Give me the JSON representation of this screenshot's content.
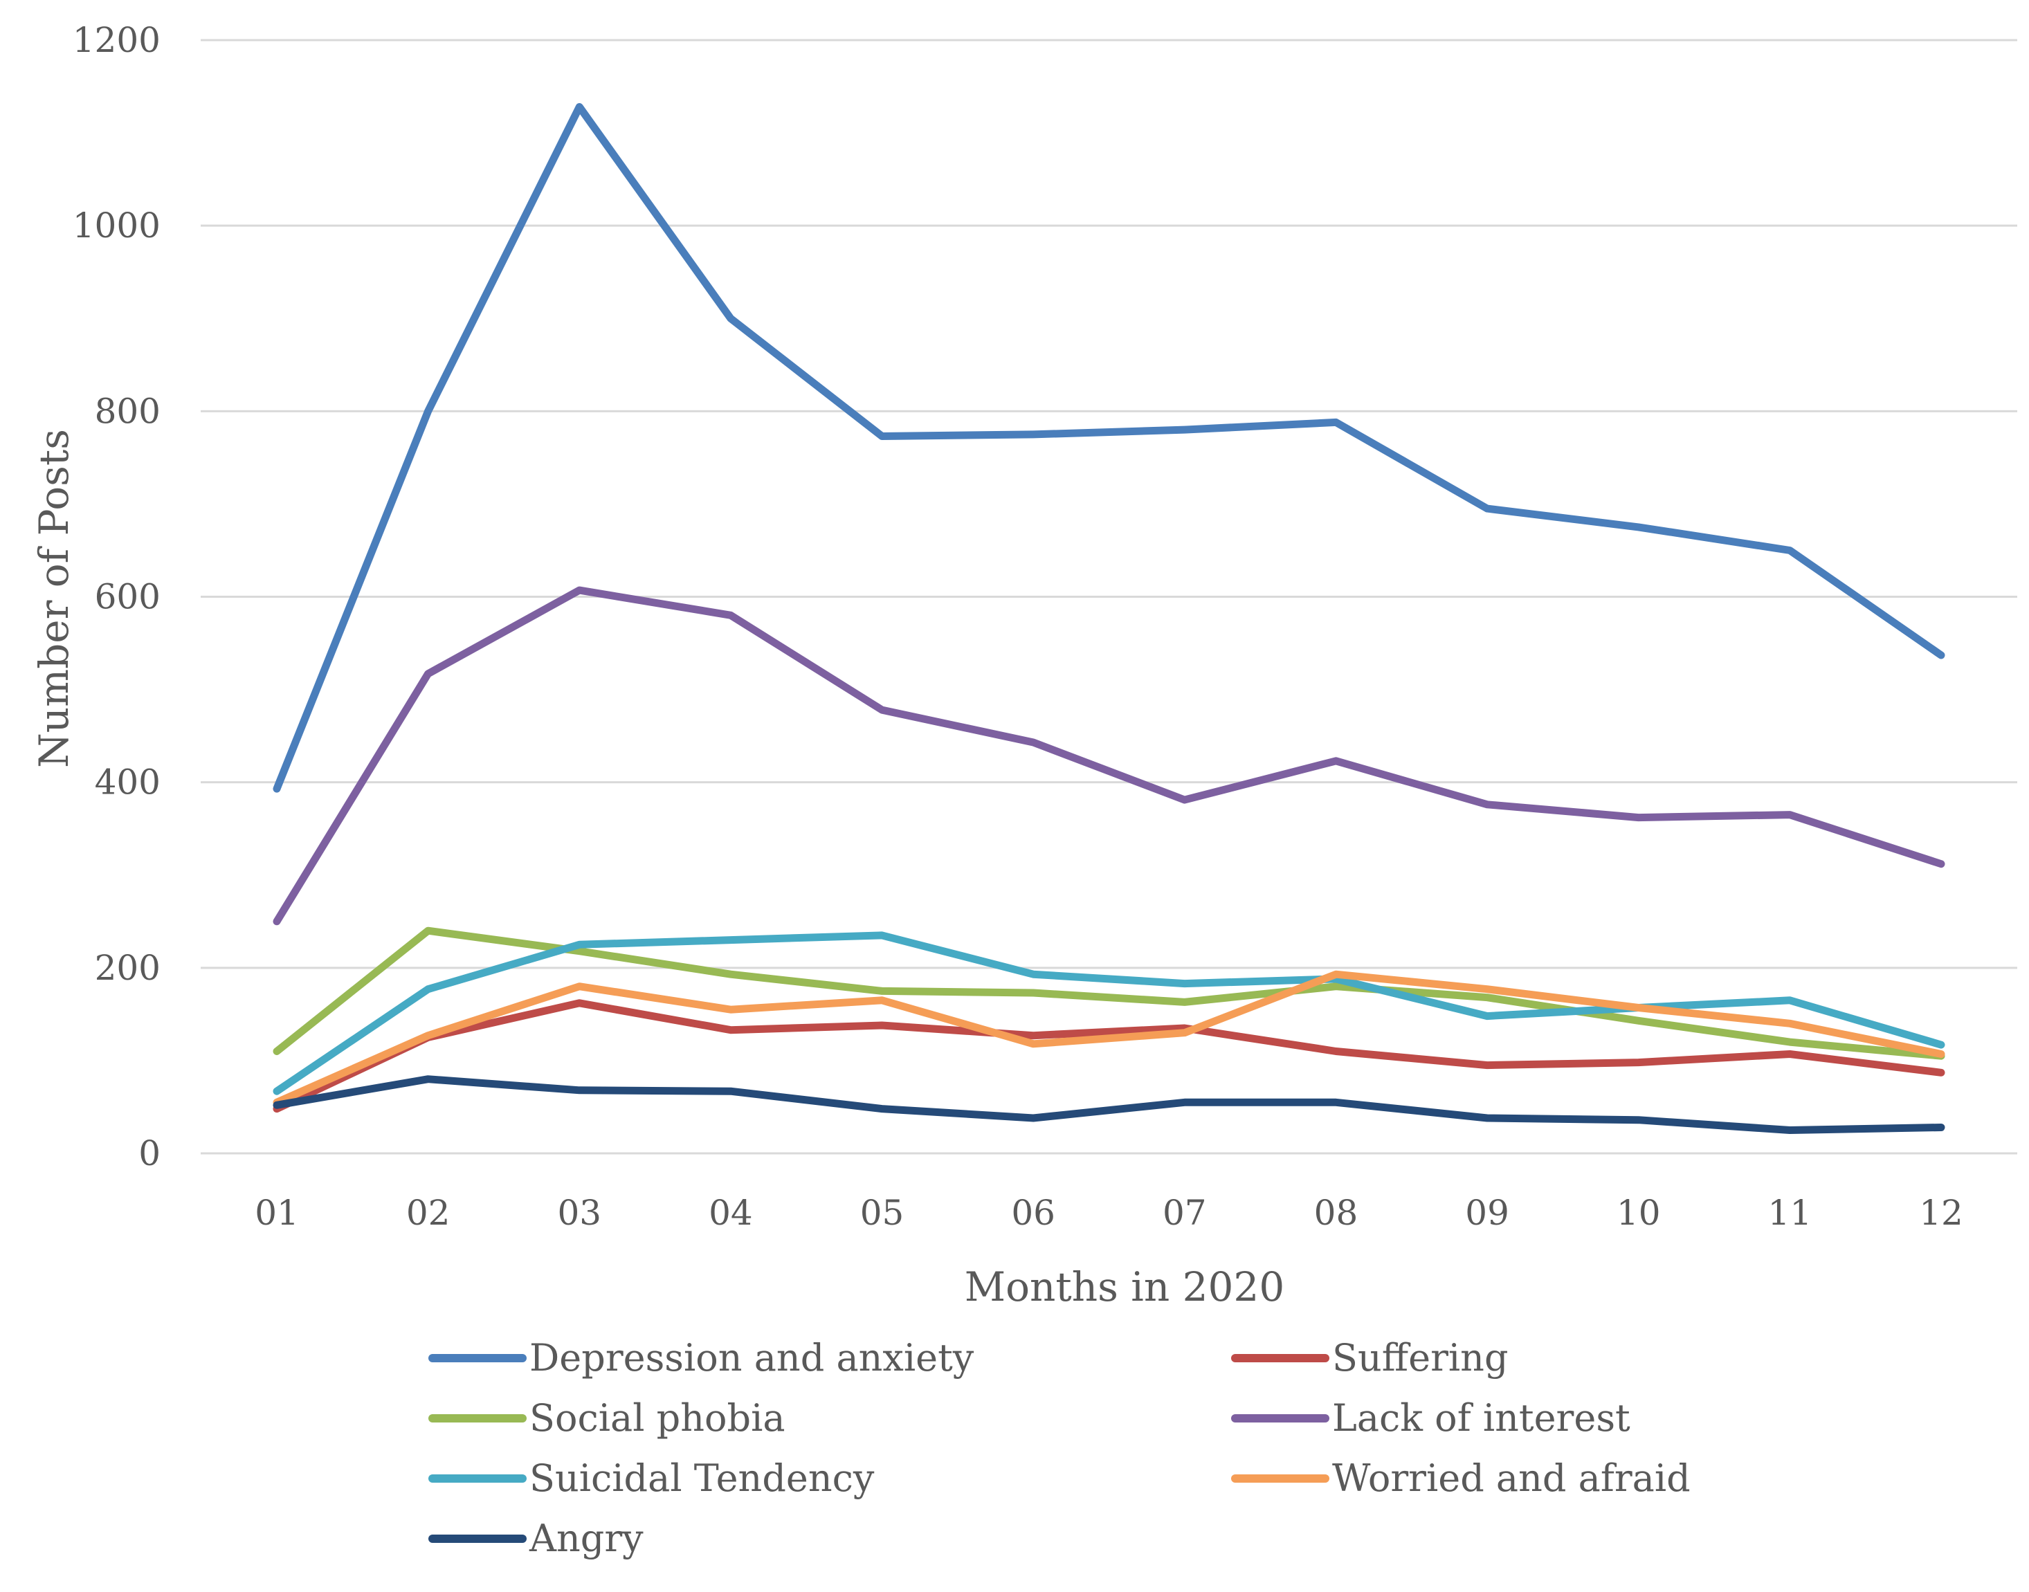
{
  "chart_data": {
    "type": "line",
    "title": "",
    "xlabel": "Months in 2020",
    "ylabel": "Number of Posts",
    "ylim": [
      0,
      1200
    ],
    "yticks": [
      0,
      200,
      400,
      600,
      800,
      1000,
      1200
    ],
    "grid": true,
    "legend_position": "bottom",
    "categories": [
      "01",
      "02",
      "03",
      "04",
      "05",
      "06",
      "07",
      "08",
      "09",
      "10",
      "11",
      "12"
    ],
    "series": [
      {
        "name": "Depression and anxiety",
        "color": "#4a7ebb",
        "values": [
          393,
          800,
          1128,
          900,
          773,
          775,
          780,
          788,
          695,
          675,
          650,
          537
        ]
      },
      {
        "name": "Suffering",
        "color": "#be4b48",
        "values": [
          48,
          125,
          162,
          133,
          138,
          127,
          135,
          110,
          95,
          98,
          107,
          87
        ]
      },
      {
        "name": "Social phobia",
        "color": "#98b954",
        "values": [
          110,
          240,
          218,
          193,
          175,
          173,
          163,
          180,
          168,
          143,
          120,
          105
        ]
      },
      {
        "name": "Lack of interest",
        "color": "#7d60a0",
        "values": [
          250,
          517,
          607,
          580,
          478,
          443,
          381,
          423,
          376,
          362,
          365,
          312
        ]
      },
      {
        "name": "Suicidal Tendency",
        "color": "#46aac4",
        "values": [
          67,
          177,
          225,
          230,
          235,
          193,
          183,
          188,
          148,
          157,
          165,
          117
        ]
      },
      {
        "name": "Worried and afraid",
        "color": "#f59d56",
        "values": [
          55,
          127,
          180,
          155,
          165,
          118,
          130,
          193,
          177,
          157,
          140,
          107
        ]
      },
      {
        "name": "Angry",
        "color": "#254a78",
        "values": [
          52,
          80,
          68,
          67,
          48,
          38,
          55,
          55,
          38,
          36,
          25,
          28
        ]
      }
    ]
  }
}
